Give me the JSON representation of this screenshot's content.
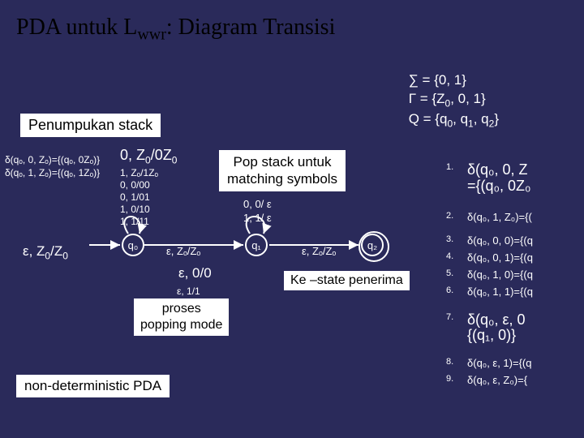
{
  "title_pre": "PDA untuk L",
  "title_sub": "wwr",
  "title_post": ": Diagram Transisi",
  "params": {
    "l1": "∑ = {0, 1}",
    "l2_pre": "Γ = {Z",
    "l2_post": ", 0, 1}",
    "l3_pre": "Q = {q",
    "l3_mid": ", q",
    "l3_mid2": ", q",
    "l3_post": "}"
  },
  "penumpukan": "Penumpukan stack",
  "delta_left": {
    "l1": "δ(qₒ, 0, Zₒ)={(qₒ, 0Zₒ)}",
    "l2": "δ(qₒ, 1, Zₒ)={(qₒ, 1Zₒ)}"
  },
  "trans_top": {
    "big_pre": "0, Z",
    "big_mid": "/0Z",
    "l2": "1, Zₒ/1Zₒ",
    "l3": "0, 0/00",
    "l4": "0, 1/01",
    "l5": "1, 0/10",
    "l6": "1, 1/11"
  },
  "pop": {
    "l1": "Pop stack untuk",
    "l2": "matching symbols"
  },
  "mid_trans": {
    "l1": "0, 0/ ε",
    "l2": "1, 1/ ε"
  },
  "states": {
    "q0": "q₀",
    "q1": "q₁",
    "q2": "q₂"
  },
  "eps_left_pre": "ε, Z",
  "eps_left_post": "/Z",
  "eps_mid1": "ε, Zₒ/Zₒ",
  "eps_mid2": "ε, 0/0",
  "eps_mid3": "ε, 1/1",
  "eps_arrow2": "ε, Zₒ/Zₒ",
  "ke_state": "Ke –state penerima",
  "proses": {
    "l1": "proses",
    "l2": "popping mode"
  },
  "nondet": "non-deterministic PDA",
  "rules": [
    {
      "num": "1.",
      "cls": "big",
      "txt": "δ(q₀, 0, Z\n={(q₀, 0Z₀"
    },
    {
      "num": "2.",
      "cls": "med",
      "txt": "δ(q₀, 1, Z₀)={("
    },
    {
      "num": "3.",
      "cls": "med",
      "txt": "δ(q₀, 0, 0)={(q"
    },
    {
      "num": "4.",
      "cls": "med",
      "txt": "δ(q₀, 0, 1)={(q"
    },
    {
      "num": "5.",
      "cls": "med",
      "txt": "δ(q₀, 1, 0)={(q"
    },
    {
      "num": "6.",
      "cls": "med",
      "txt": "δ(q₀, 1, 1)={(q"
    },
    {
      "num": "7.",
      "cls": "big",
      "txt": "δ(q₀, ε, 0\n{(q₁, 0)}"
    },
    {
      "num": "8.",
      "cls": "med",
      "txt": "δ(q₀, ε, 1)={(q"
    },
    {
      "num": "9.",
      "cls": "med",
      "txt": "δ(q₀, ε, Z₀)={"
    }
  ],
  "colors": {
    "bg": "#2a2a5a",
    "text": "#ffffff",
    "box_bg": "#ffffff",
    "box_text": "#000000"
  }
}
